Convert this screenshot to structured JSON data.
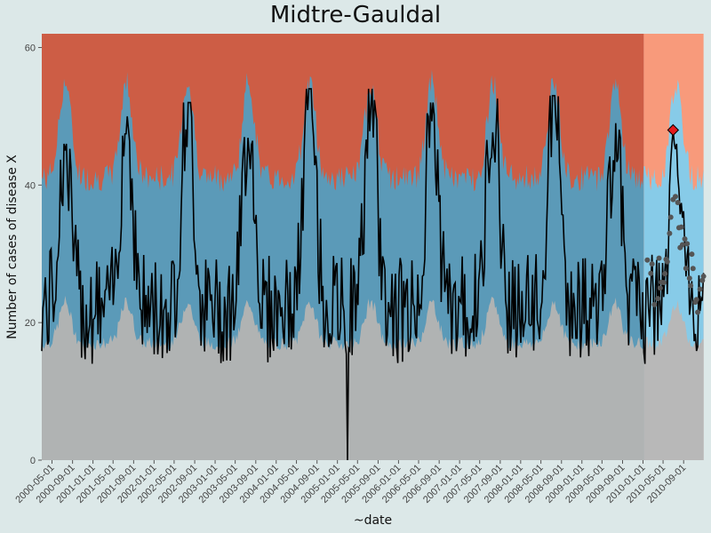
{
  "chart_data": {
    "type": "area",
    "title": "Midtre-Gauldal",
    "xlabel": "~date",
    "ylabel": "Number of cases of disease X",
    "ylim": [
      0,
      62
    ],
    "y_ticks": [
      0,
      20,
      40,
      60
    ],
    "xlim": [
      "2000-03-01",
      "2010-12-31"
    ],
    "x_tick_labels": [
      "2000-05-01",
      "2000-09-01",
      "2001-01-01",
      "2001-05-01",
      "2001-09-01",
      "2002-01-01",
      "2002-05-01",
      "2002-09-01",
      "2003-01-01",
      "2003-05-01",
      "2003-09-01",
      "2004-01-01",
      "2004-05-01",
      "2004-09-01",
      "2005-01-01",
      "2005-05-01",
      "2005-09-01",
      "2006-01-01",
      "2006-05-01",
      "2006-09-01",
      "2007-01-01",
      "2007-05-01",
      "2007-09-01",
      "2008-01-01",
      "2008-05-01",
      "2008-09-01",
      "2009-01-01",
      "2009-05-01",
      "2009-09-01",
      "2010-01-01",
      "2010-05-01",
      "2010-09-01"
    ],
    "baseline_period": [
      "2000-03-01",
      "2009-12-31"
    ],
    "prediction_period": [
      "2010-01-01",
      "2010-12-31"
    ],
    "regions": [
      {
        "name": "low",
        "color": "#b0b3b3",
        "color_prediction": "#b8b8b8"
      },
      {
        "name": "normal",
        "color": "#5b9ab8",
        "color_prediction": "#87cbe8"
      },
      {
        "name": "high",
        "color": "#cd5d45",
        "color_prediction": "#f89a7b"
      }
    ],
    "seasonal_model": {
      "lower_threshold": {
        "base": 19,
        "amplitude": 4,
        "peak_month": 6
      },
      "upper_threshold": {
        "base": 42,
        "amplitude": 9,
        "peak_month": 6
      }
    },
    "series": [
      {
        "name": "observed",
        "color": "#000000",
        "annual_peaks": [
          {
            "date": "2001-08-15",
            "value": 50
          },
          {
            "date": "2002-08-01",
            "value": 52
          },
          {
            "date": "2003-09-01",
            "value": 49
          },
          {
            "date": "2004-07-15",
            "value": 54
          },
          {
            "date": "2005-06-15",
            "value": 54
          },
          {
            "date": "2006-08-01",
            "value": 52
          },
          {
            "date": "2007-07-01",
            "value": 53
          },
          {
            "date": "2008-07-15",
            "value": 53
          },
          {
            "date": "2009-08-01",
            "value": 49
          }
        ],
        "notable_points": [
          {
            "date": "2005-03-01",
            "value": 0,
            "note": "dip to zero"
          },
          {
            "date": "2010-07-01",
            "value": 48,
            "note": "alert (red diamond)"
          }
        ]
      }
    ],
    "prediction_points_color": "#555555",
    "alert_marker_color": "#e31a1c",
    "grid": false
  }
}
